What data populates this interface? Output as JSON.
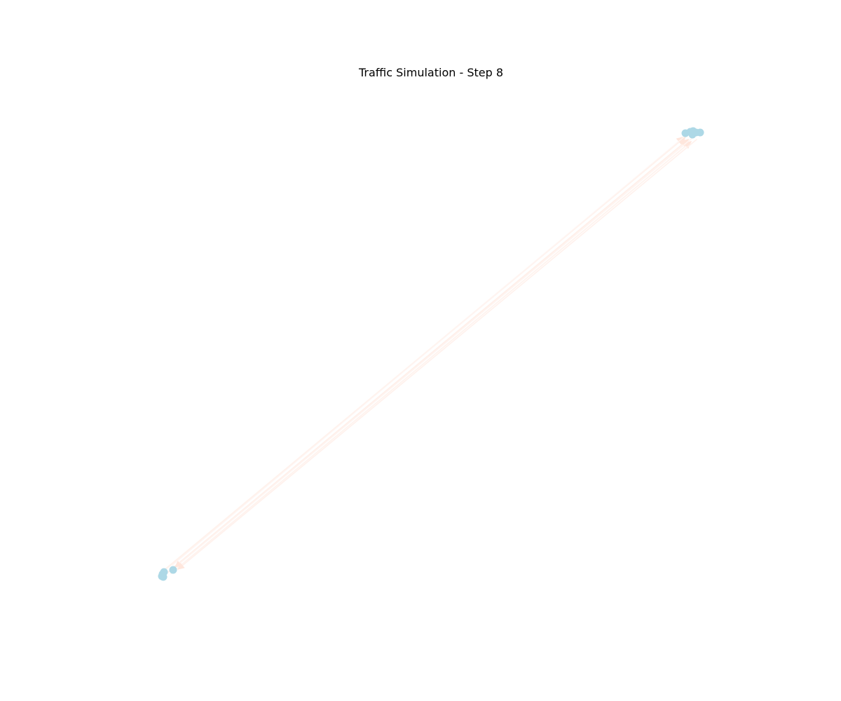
{
  "title": "Traffic Simulation - Step 8",
  "colors": {
    "node": "#add8e6",
    "edge": "#fff0ea",
    "background": "#ffffff"
  },
  "network": {
    "directed": true,
    "node_count": 11,
    "clusters": [
      "top-right",
      "bottom-left"
    ]
  }
}
